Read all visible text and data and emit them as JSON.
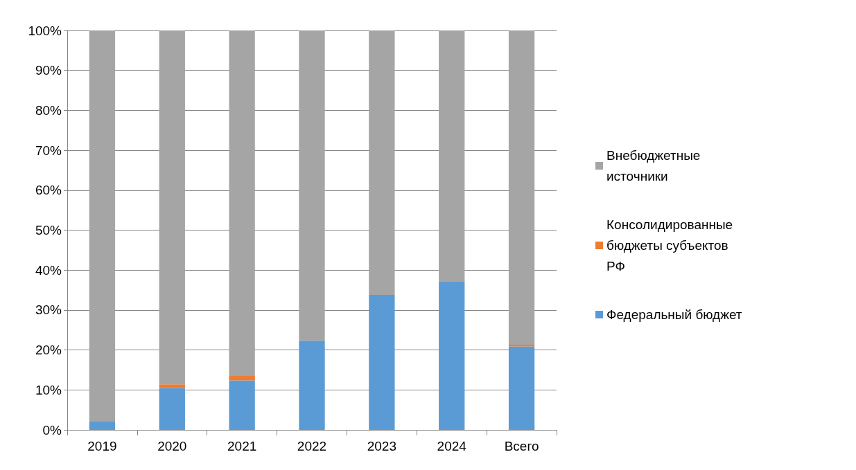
{
  "chart_data": {
    "type": "bar",
    "stacked": true,
    "categories": [
      "2019",
      "2020",
      "2021",
      "2022",
      "2023",
      "2024",
      "Всего"
    ],
    "series": [
      {
        "name": "Федеральный бюджет",
        "color": "#5b9bd5",
        "values": [
          2.2,
          10.5,
          12.4,
          22.3,
          33.8,
          37.2,
          20.9
        ]
      },
      {
        "name": "Консолидированные бюджеты субъектов РФ",
        "color": "#ed7d31",
        "values": [
          0,
          0.9,
          1.1,
          0,
          0,
          0,
          0.4
        ]
      },
      {
        "name": "Внебюджетные источники",
        "color": "#a5a5a5",
        "values": [
          97.8,
          88.6,
          86.5,
          77.7,
          66.2,
          62.8,
          78.7
        ]
      }
    ],
    "ylim": [
      0,
      100
    ],
    "yticks": [
      {
        "value": 0,
        "label": "0%"
      },
      {
        "value": 10,
        "label": "10%"
      },
      {
        "value": 20,
        "label": "20%"
      },
      {
        "value": 30,
        "label": "30%"
      },
      {
        "value": 40,
        "label": "40%"
      },
      {
        "value": 50,
        "label": "50%"
      },
      {
        "value": 60,
        "label": "60%"
      },
      {
        "value": 70,
        "label": "70%"
      },
      {
        "value": 80,
        "label": "80%"
      },
      {
        "value": 90,
        "label": "90%"
      },
      {
        "value": 100,
        "label": "100%"
      }
    ],
    "grid": "y",
    "legend": "right"
  }
}
